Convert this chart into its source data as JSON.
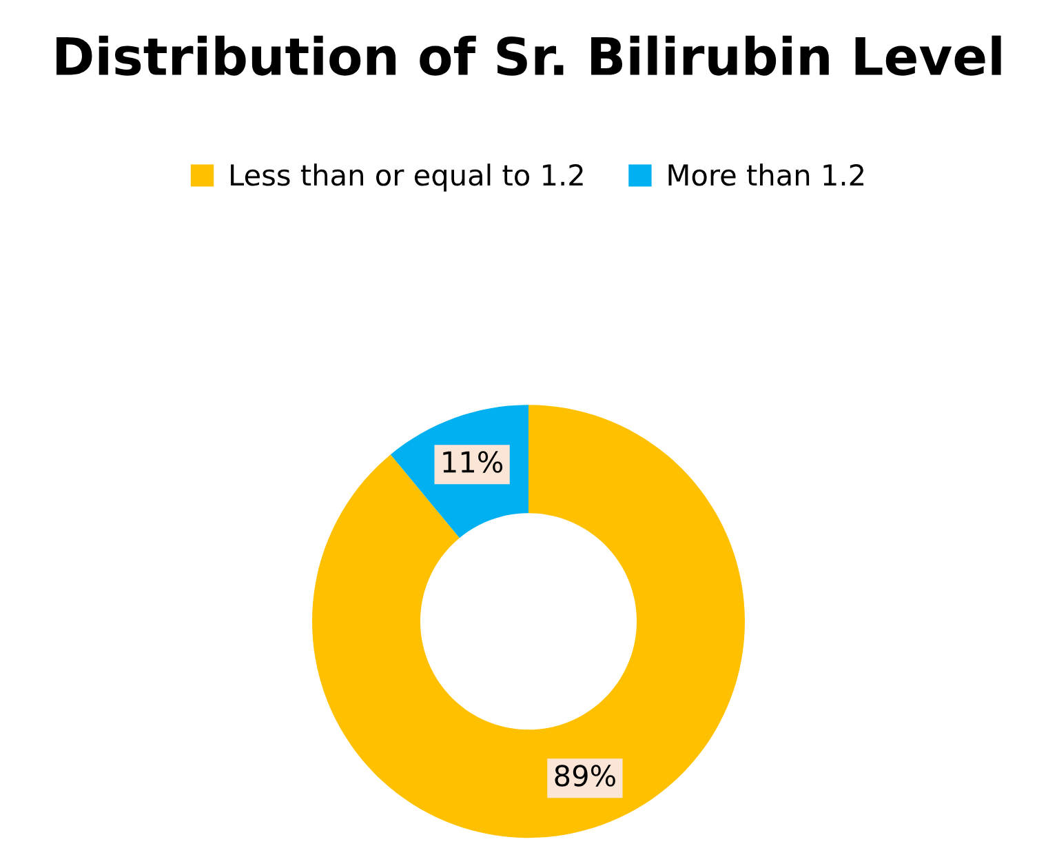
{
  "chart_data": {
    "type": "donut",
    "title": "Distribution of Sr. Bilirubin Level",
    "categories": [
      "Less than or equal to 1.2",
      "More than 1.2"
    ],
    "values": [
      89,
      11
    ],
    "colors": [
      "#ffc000",
      "#00b0f0"
    ],
    "value_labels": [
      "89%",
      "11%"
    ],
    "legend": "top"
  }
}
